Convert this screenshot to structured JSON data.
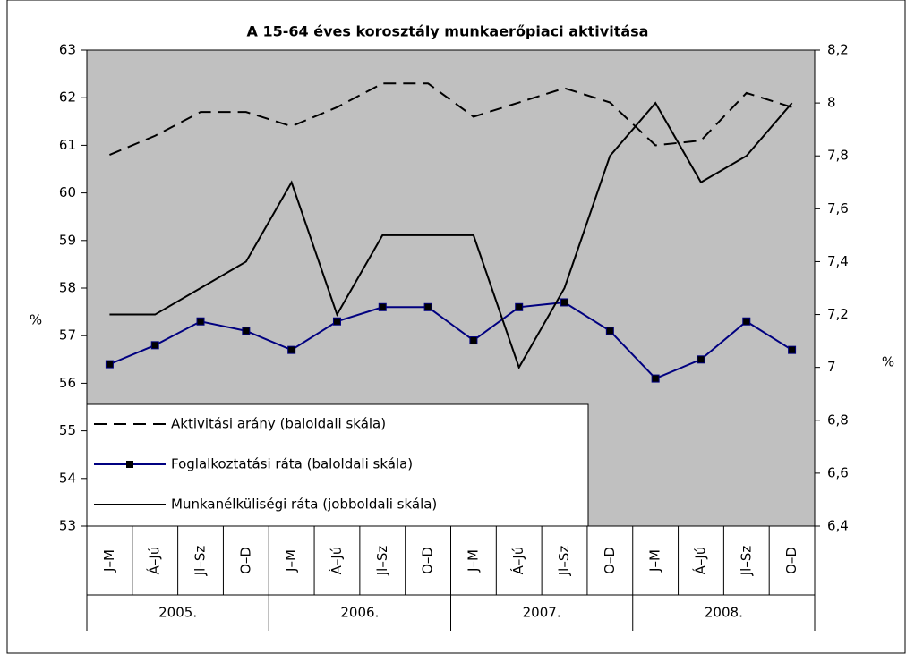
{
  "chart_data": {
    "type": "line",
    "title": "A 15-64 éves korosztály munkaerőpiaci aktivitása",
    "ylabel": "%",
    "y2label": "%",
    "categories": [
      "J–M",
      "Á–Jú",
      "Jl–Sz",
      "O–D",
      "J–M",
      "Á–Jú",
      "Jl–Sz",
      "O–D",
      "J–M",
      "Á–Jú",
      "Jl–Sz",
      "O–D",
      "J–M",
      "Á–Jú",
      "Jl–Sz",
      "O–D"
    ],
    "groups": [
      "2005.",
      "2006.",
      "2007.",
      "2008."
    ],
    "ylim": [
      53,
      63
    ],
    "yticks": [
      53,
      54,
      55,
      56,
      57,
      58,
      59,
      60,
      61,
      62,
      63
    ],
    "y2lim": [
      6.4,
      8.2
    ],
    "y2ticks": [
      {
        "value": 6.4,
        "label": "6,4"
      },
      {
        "value": 6.6,
        "label": "6,6"
      },
      {
        "value": 6.8,
        "label": "6,8"
      },
      7,
      {
        "value": 7.2,
        "label": "7,2"
      },
      {
        "value": 7.4,
        "label": "7,4"
      },
      {
        "value": 7.6,
        "label": "7,6"
      },
      {
        "value": 7.8,
        "label": "7,8"
      },
      8,
      {
        "value": 8.2,
        "label": "8,2"
      }
    ],
    "legend": "lower left",
    "plot_background": "#c0c0c0",
    "series": [
      {
        "name": "Aktivitási arány (baloldali skála)",
        "color": "#000000",
        "dash": true,
        "values": [
          60.8,
          61.2,
          61.7,
          61.7,
          61.4,
          61.8,
          62.3,
          62.3,
          61.6,
          61.9,
          62.2,
          61.9,
          61.0,
          61.1,
          62.1,
          61.8
        ]
      },
      {
        "name": "Foglalkoztatási ráta (baloldali skála)",
        "color": "#000080",
        "marker": true,
        "values": [
          56.4,
          56.8,
          57.3,
          57.1,
          56.7,
          57.3,
          57.6,
          57.6,
          56.9,
          57.6,
          57.7,
          57.1,
          56.1,
          56.5,
          57.3,
          56.7
        ]
      },
      {
        "name": "Munkanélküliségi ráta (jobboldali skála)",
        "color": "#000000",
        "axis": "y2",
        "values": [
          7.2,
          7.2,
          7.3,
          7.4,
          7.7,
          7.2,
          7.5,
          7.5,
          7.5,
          7.0,
          7.3,
          7.8,
          8.0,
          7.7,
          7.8,
          8.0
        ]
      }
    ]
  }
}
